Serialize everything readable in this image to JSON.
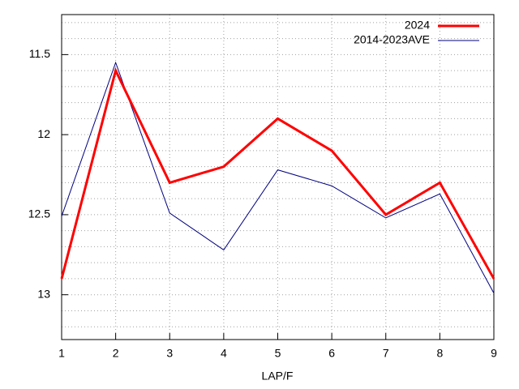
{
  "chart_data": {
    "type": "line",
    "xlabel": "LAP/F",
    "x": [
      1,
      2,
      3,
      4,
      5,
      6,
      7,
      8,
      9
    ],
    "series": [
      {
        "name": "2024",
        "color": "#ff0000",
        "width": 3,
        "values": [
          12.9,
          11.6,
          12.3,
          12.2,
          11.9,
          12.1,
          12.5,
          12.3,
          12.9
        ]
      },
      {
        "name": "2014-2023AVE",
        "color": "#000080",
        "width": 1,
        "values": [
          12.51,
          11.55,
          12.49,
          12.72,
          12.22,
          12.32,
          12.52,
          12.37,
          12.99
        ]
      }
    ],
    "xlim": [
      1,
      9
    ],
    "xticks": [
      1,
      2,
      3,
      4,
      5,
      6,
      7,
      8,
      9
    ],
    "ylim": [
      11.25,
      13.28
    ],
    "y_reversed": true,
    "yticks": [
      11.5,
      12,
      12.5,
      13
    ],
    "y_minor_ticks": [
      11.3,
      11.4,
      11.6,
      11.7,
      11.8,
      11.9,
      12.1,
      12.2,
      12.3,
      12.4,
      12.6,
      12.7,
      12.8,
      12.9,
      13.1,
      13.2
    ],
    "grid": true,
    "legend": "top-right"
  }
}
